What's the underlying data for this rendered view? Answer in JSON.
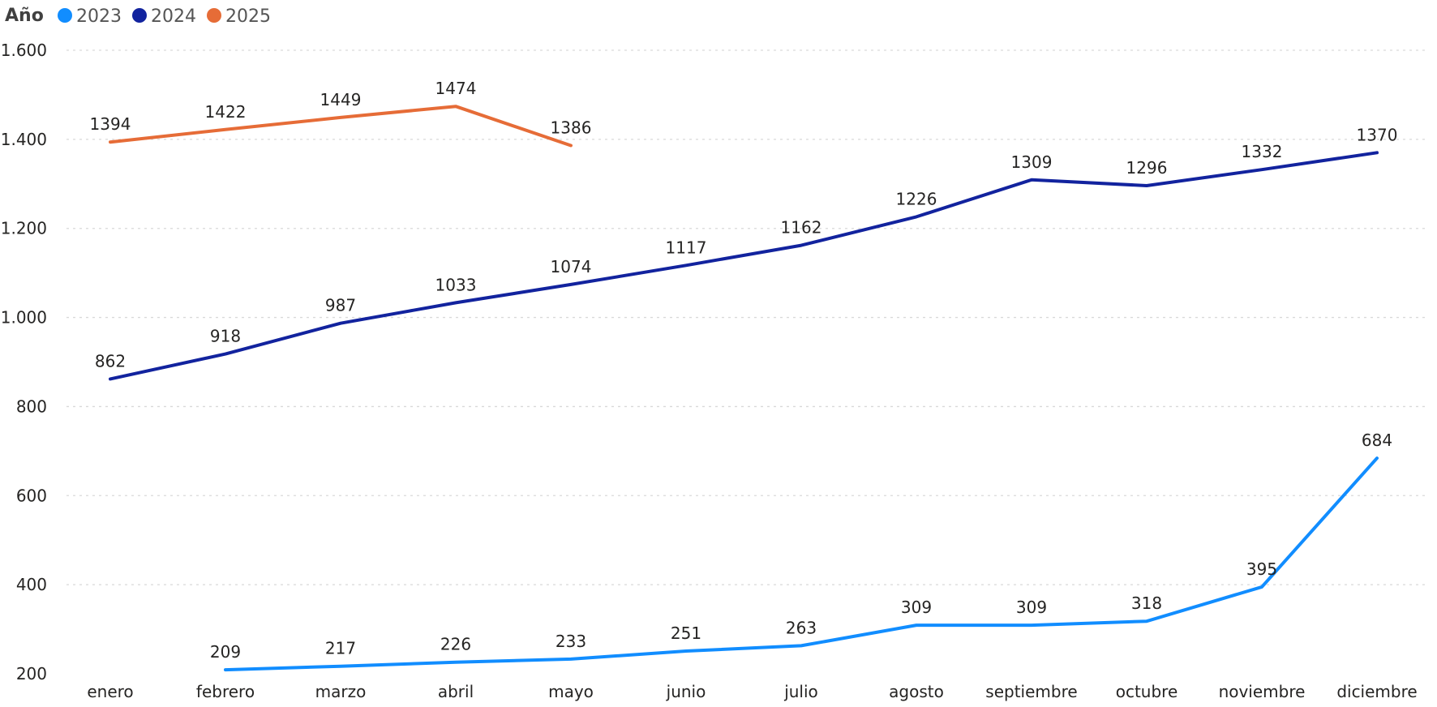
{
  "chart_data": {
    "type": "line",
    "legend": {
      "title": "Año",
      "placement": "top-left"
    },
    "categories": [
      "enero",
      "febrero",
      "marzo",
      "abril",
      "mayo",
      "junio",
      "julio",
      "agosto",
      "septiembre",
      "octubre",
      "noviembre",
      "diciembre"
    ],
    "ylim": [
      200,
      1600
    ],
    "yticks": [
      200,
      400,
      600,
      800,
      1000,
      1200,
      1400,
      1600
    ],
    "ytick_labels": [
      "200",
      "400",
      "600",
      "800",
      "1.000",
      "1.200",
      "1.400",
      "1.600"
    ],
    "grid": true,
    "series": [
      {
        "name": "2023",
        "color": "#118DFF",
        "values": [
          null,
          209,
          217,
          226,
          233,
          251,
          263,
          309,
          309,
          318,
          395,
          684
        ]
      },
      {
        "name": "2024",
        "color": "#12239E",
        "values": [
          862,
          918,
          987,
          1033,
          1074,
          1117,
          1162,
          1226,
          1309,
          1296,
          1332,
          1370
        ]
      },
      {
        "name": "2025",
        "color": "#E66C37",
        "values": [
          1394,
          1422,
          1449,
          1474,
          1386,
          null,
          null,
          null,
          null,
          null,
          null,
          null
        ]
      }
    ]
  }
}
